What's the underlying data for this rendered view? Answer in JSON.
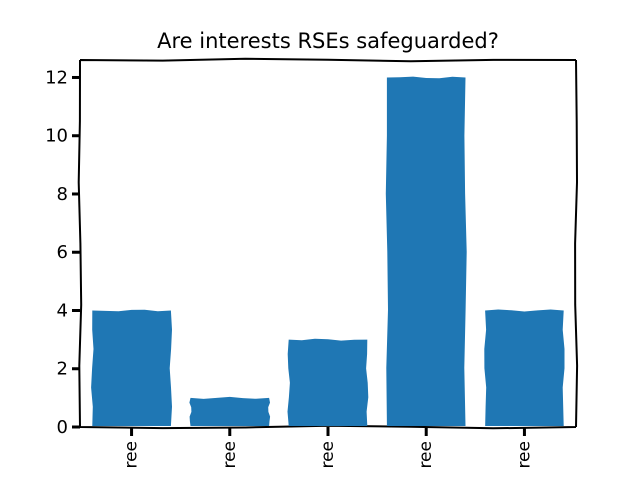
{
  "chart_data": {
    "type": "bar",
    "title": "Are interests RSEs safeguarded?",
    "categories": [
      "ree",
      "ree",
      "ree",
      "ree",
      "ree"
    ],
    "values": [
      4,
      1,
      3,
      12,
      4
    ],
    "xlabel": "",
    "ylabel": "",
    "ylim": [
      0,
      12.6
    ],
    "yticks": [
      0,
      2,
      4,
      6,
      8,
      10,
      12
    ],
    "bar_color": "#1f77b4",
    "grid": false,
    "style": "xkcd"
  }
}
